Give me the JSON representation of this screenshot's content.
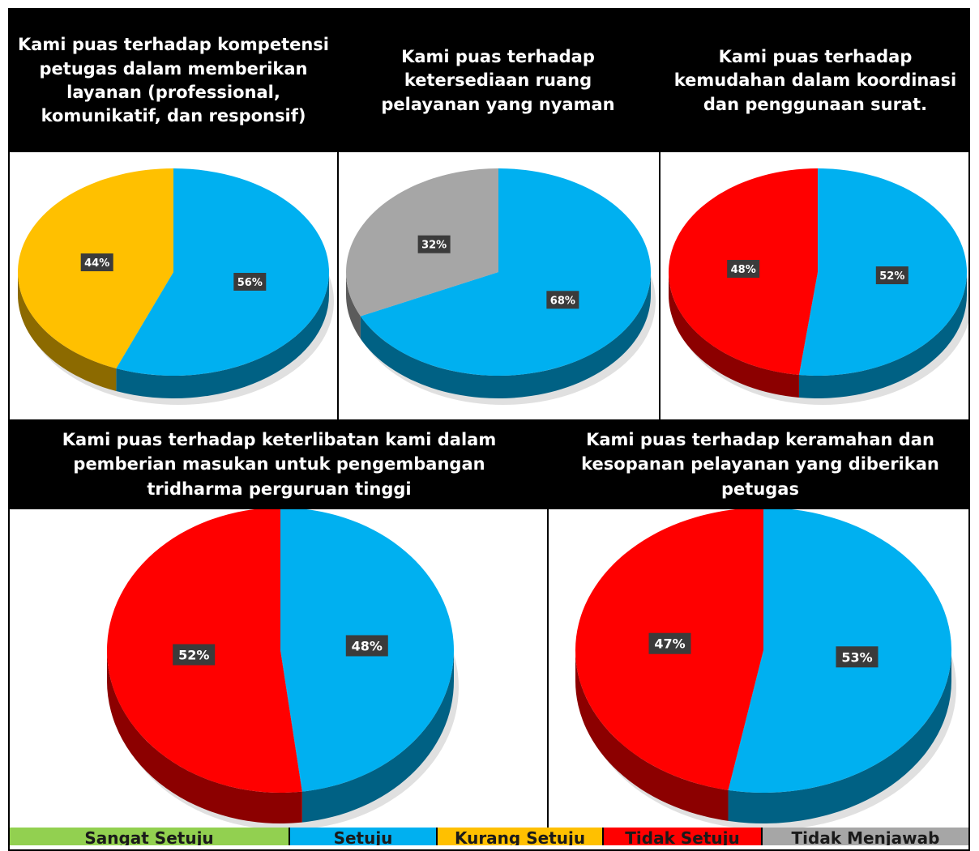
{
  "colors": {
    "Sangat Setuju": "#92d050",
    "Setuju": "#00b0f0",
    "Kurang Setuju": "#ffc000",
    "Tidak Setuju": "#ff0000",
    "Tidak Menjawab": "#a6a6a6"
  },
  "legend": [
    "Sangat Setuju",
    "Setuju",
    "Kurang Setuju",
    "Tidak Setuju",
    "Tidak Menjawab"
  ],
  "chart_data": [
    {
      "type": "pie",
      "title": "Kami puas terhadap kompetensi petugas dalam memberikan layanan (professional, komunikatif, dan responsif)",
      "slices": [
        {
          "category": "Setuju",
          "value": 56,
          "label": "56%"
        },
        {
          "category": "Kurang Setuju",
          "value": 44,
          "label": "44%"
        }
      ]
    },
    {
      "type": "pie",
      "title": "Kami puas terhadap ketersediaan ruang pelayanan yang nyaman",
      "slices": [
        {
          "category": "Setuju",
          "value": 68,
          "label": "68%"
        },
        {
          "category": "Tidak Menjawab",
          "value": 32,
          "label": "32%"
        }
      ]
    },
    {
      "type": "pie",
      "title": "Kami puas terhadap kemudahan dalam koordinasi dan penggunaan surat.",
      "slices": [
        {
          "category": "Setuju",
          "value": 52,
          "label": "52%"
        },
        {
          "category": "Tidak Setuju",
          "value": 48,
          "label": "48%"
        }
      ]
    },
    {
      "type": "pie",
      "title": "Kami puas terhadap keterlibatan kami dalam pemberian masukan untuk pengembangan tridharma perguruan tinggi",
      "slices": [
        {
          "category": "Setuju",
          "value": 48,
          "label": "48%"
        },
        {
          "category": "Tidak Setuju",
          "value": 52,
          "label": "52%"
        }
      ]
    },
    {
      "type": "pie",
      "title": "Kami puas terhadap keramahan dan kesopanan pelayanan yang diberikan petugas",
      "slices": [
        {
          "category": "Setuju",
          "value": 53,
          "label": "53%"
        },
        {
          "category": "Tidak Setuju",
          "value": 47,
          "label": "47%"
        }
      ]
    }
  ]
}
